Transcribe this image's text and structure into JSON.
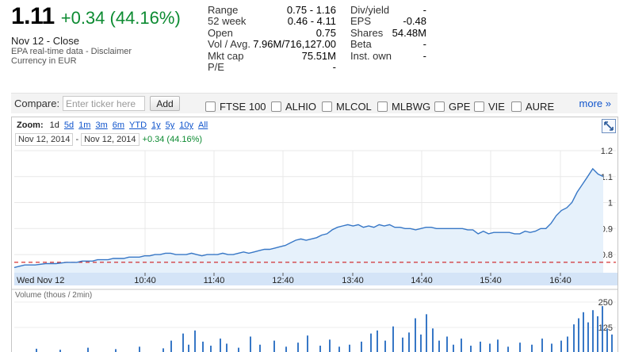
{
  "quote": {
    "price": "1.11",
    "change": "+0.34 (44.16%)",
    "close_info": "Nov 12 - Close",
    "data_source": "EPA real-time data - Disclaimer",
    "currency": "Currency in EUR"
  },
  "stats_left": [
    {
      "label": "Range",
      "value": "0.75 - 1.16"
    },
    {
      "label": "52 week",
      "value": "0.46 - 4.11"
    },
    {
      "label": "Open",
      "value": "0.75"
    },
    {
      "label": "Vol / Avg.",
      "value": "7.96M/716,127.00"
    },
    {
      "label": "Mkt cap",
      "value": "75.51M"
    },
    {
      "label": "P/E",
      "value": "-"
    }
  ],
  "stats_right": [
    {
      "label": "Div/yield",
      "value": "-"
    },
    {
      "label": "EPS",
      "value": "-0.48"
    },
    {
      "label": "Shares",
      "value": "54.48M"
    },
    {
      "label": "Beta",
      "value": "-"
    },
    {
      "label": "Inst. own",
      "value": "-"
    }
  ],
  "compare": {
    "label": "Compare:",
    "placeholder": "Enter ticker here",
    "add_label": "Add",
    "tickers": [
      "FTSE 100",
      "ALHIO",
      "MLCOL",
      "MLBWG",
      "GPE",
      "VIE",
      "AURE"
    ],
    "more_label": "more »"
  },
  "chart_controls": {
    "zoom_label": "Zoom:",
    "zoom_options": [
      "1d",
      "5d",
      "1m",
      "3m",
      "6m",
      "YTD",
      "1y",
      "5y",
      "10y",
      "All"
    ],
    "active_zoom": "1d",
    "date_from": "Nov 12, 2014",
    "date_sep": "-",
    "date_to": "Nov 12, 2014",
    "range_change": "+0.34 (44.16%)",
    "volume_label": "Volume (thous / 2min)"
  },
  "colors": {
    "up": "#0d8b32",
    "line": "#3777c6",
    "fill": "#e6f1fb",
    "prev_close": "#cc0000",
    "link": "#1155cc"
  },
  "chart_data": {
    "type": "line",
    "x_ticks": [
      "Wed Nov 12",
      "10:40",
      "11:40",
      "12:40",
      "13:40",
      "14:40",
      "15:40",
      "16:40"
    ],
    "y_ticks": [
      0.8,
      0.9,
      1.0,
      1.1,
      1.2
    ],
    "ylim": [
      0.73,
      1.2
    ],
    "previous_close": 0.77,
    "price": {
      "x": [
        0,
        10,
        20,
        30,
        40,
        50,
        55,
        60,
        65,
        70,
        75,
        80,
        85,
        90,
        95,
        100,
        105,
        110,
        115,
        120,
        125,
        130,
        135,
        140,
        145,
        150,
        155,
        160,
        165,
        170,
        175,
        180,
        185,
        190,
        195,
        200,
        205,
        210,
        215,
        220,
        225,
        230,
        235,
        240,
        245,
        250,
        255,
        260,
        265,
        270,
        275,
        280,
        285,
        290,
        295,
        300,
        305,
        310,
        315,
        320,
        325,
        330,
        335,
        340,
        345,
        350,
        355,
        360,
        365,
        370,
        375,
        380,
        385,
        390,
        395,
        400,
        405,
        410,
        415,
        420,
        425,
        430,
        435,
        440,
        445,
        450,
        455,
        460,
        465,
        470,
        475,
        480,
        485,
        490,
        495,
        500,
        505,
        510,
        515,
        520,
        525,
        530,
        535,
        540,
        545,
        550,
        555,
        560,
        565
      ],
      "y": [
        0.75,
        0.76,
        0.76,
        0.765,
        0.765,
        0.77,
        0.77,
        0.77,
        0.775,
        0.775,
        0.775,
        0.78,
        0.78,
        0.78,
        0.785,
        0.785,
        0.785,
        0.79,
        0.79,
        0.79,
        0.795,
        0.795,
        0.8,
        0.8,
        0.805,
        0.805,
        0.8,
        0.8,
        0.8,
        0.805,
        0.8,
        0.795,
        0.8,
        0.8,
        0.8,
        0.805,
        0.8,
        0.8,
        0.805,
        0.81,
        0.805,
        0.81,
        0.815,
        0.82,
        0.82,
        0.825,
        0.83,
        0.835,
        0.845,
        0.855,
        0.86,
        0.855,
        0.86,
        0.865,
        0.875,
        0.88,
        0.895,
        0.905,
        0.91,
        0.915,
        0.91,
        0.915,
        0.905,
        0.91,
        0.905,
        0.915,
        0.91,
        0.915,
        0.905,
        0.905,
        0.9,
        0.9,
        0.895,
        0.9,
        0.905,
        0.905,
        0.9,
        0.9,
        0.9,
        0.9,
        0.9,
        0.9,
        0.895,
        0.895,
        0.88,
        0.89,
        0.88,
        0.885,
        0.885,
        0.885,
        0.885,
        0.88,
        0.88,
        0.89,
        0.885,
        0.89,
        0.9,
        0.9,
        0.92,
        0.95,
        0.97,
        0.98,
        1.0,
        1.04,
        1.07,
        1.1,
        1.13,
        1.11,
        1.1
      ]
    },
    "volume_ticks": [
      125,
      250
    ],
    "volume_ylim": [
      0,
      250
    ]
  }
}
